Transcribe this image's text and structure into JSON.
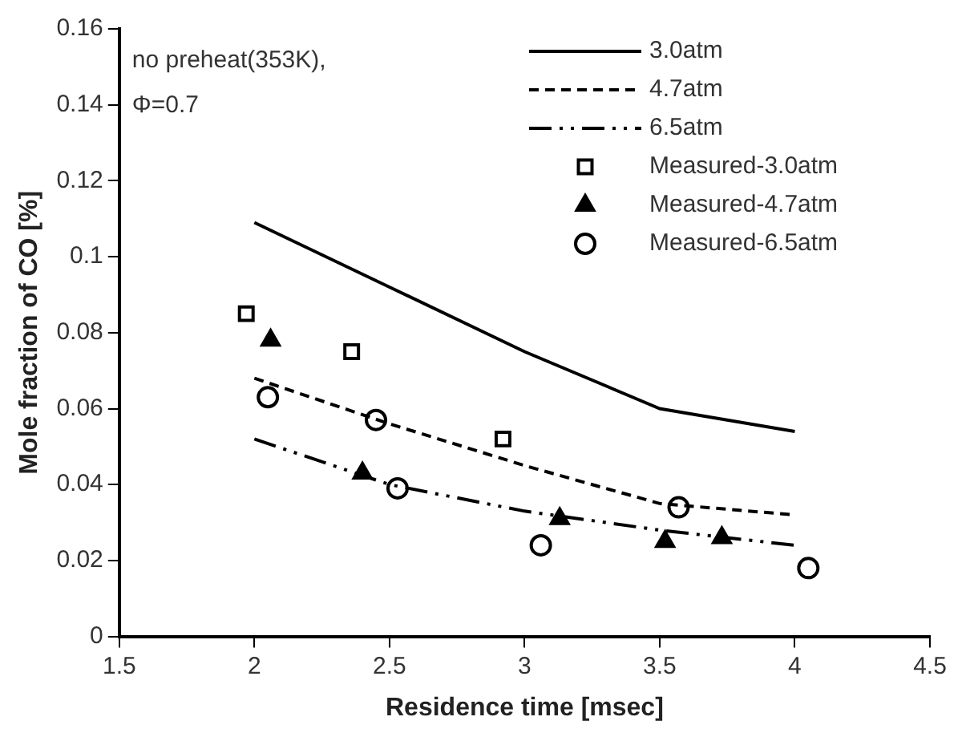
{
  "chart_data": {
    "type": "line",
    "xlabel": "Residence time [msec]",
    "ylabel": "Mole fraction of CO [%]",
    "annotations": [
      "no preheat(353K),",
      "Φ=0.7"
    ],
    "xlim": [
      1.5,
      4.5
    ],
    "xticks": [
      1.5,
      2,
      2.5,
      3,
      3.5,
      4,
      4.5
    ],
    "ylim": [
      0,
      0.16
    ],
    "yticks": [
      0,
      0.02,
      0.04,
      0.06,
      0.08,
      0.1,
      0.12,
      0.14,
      0.16
    ],
    "grid": false,
    "legend": "top right",
    "series": [
      {
        "name": "3.0atm",
        "color": "#000000",
        "line_style": "solid",
        "marker": "none",
        "x": [
          2,
          2.5,
          3,
          3.5,
          4
        ],
        "values": [
          0.109,
          0.092,
          0.075,
          0.06,
          0.054
        ]
      },
      {
        "name": "4.7atm",
        "color": "#000000",
        "line_style": "dashed",
        "marker": "none",
        "x": [
          2,
          2.5,
          3,
          3.5,
          4
        ],
        "values": [
          0.068,
          0.056,
          0.045,
          0.035,
          0.032
        ]
      },
      {
        "name": "6.5atm",
        "color": "#000000",
        "line_style": "dashdot",
        "marker": "none",
        "x": [
          2,
          2.5,
          3,
          3.5,
          4
        ],
        "values": [
          0.052,
          0.04,
          0.033,
          0.028,
          0.024
        ]
      },
      {
        "name": "Measured-3.0atm",
        "type": "scatter",
        "color": "#000000",
        "marker": "square",
        "x": [
          1.97,
          2.36,
          2.92
        ],
        "values": [
          0.085,
          0.075,
          0.052
        ]
      },
      {
        "name": "Measured-4.7atm",
        "type": "scatter",
        "color": "#000000",
        "marker": "triangle",
        "x": [
          2.06,
          2.4,
          3.13,
          3.52,
          3.73
        ],
        "values": [
          0.078,
          0.043,
          0.031,
          0.025,
          0.026
        ]
      },
      {
        "name": "Measured-6.5atm",
        "type": "scatter",
        "color": "#000000",
        "marker": "circle",
        "x": [
          2.05,
          2.45,
          2.53,
          3.06,
          3.57,
          4.05
        ],
        "values": [
          0.063,
          0.057,
          0.039,
          0.024,
          0.034,
          0.018
        ]
      }
    ]
  }
}
